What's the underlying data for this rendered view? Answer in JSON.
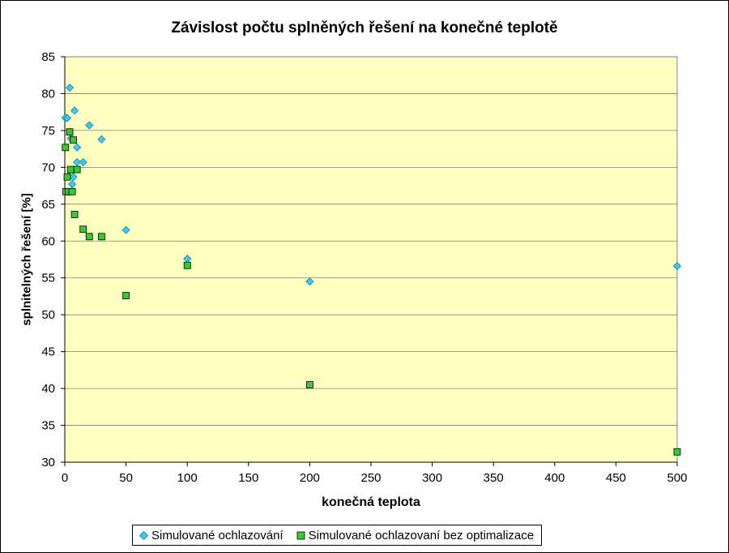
{
  "chart_data": {
    "type": "scatter",
    "title": "Závislost počtu splněných řešení na konečné teplotě",
    "xlabel": "konečná teplota",
    "ylabel": "splnitelných řešení [%]",
    "xlim": [
      0,
      500
    ],
    "ylim": [
      30,
      85
    ],
    "xticks": [
      0,
      50,
      100,
      150,
      200,
      250,
      300,
      350,
      400,
      450,
      500
    ],
    "yticks": [
      30,
      35,
      40,
      45,
      50,
      55,
      60,
      65,
      70,
      75,
      80,
      85
    ],
    "grid": "horizontal",
    "legend_position": "bottom",
    "plot_background": "#FFFFC0",
    "series": [
      {
        "name": "Simulované ochlazování",
        "marker": "diamond",
        "color": "#33CCFF",
        "x": [
          0.5,
          2,
          4,
          5,
          6,
          7,
          8,
          10,
          10,
          15,
          20,
          30,
          50,
          100,
          200,
          500
        ],
        "y": [
          76.7,
          76.7,
          80.8,
          73.9,
          67.7,
          68.7,
          77.7,
          72.7,
          70.7,
          70.7,
          75.7,
          73.8,
          61.5,
          57.6,
          54.5,
          56.6
        ]
      },
      {
        "name": "Simulované ochlazovaní bez optimalizace",
        "marker": "square",
        "color": "#33CC33",
        "x": [
          0.5,
          1,
          2,
          3,
          4,
          5,
          6,
          7,
          8,
          10,
          15,
          20,
          30,
          50,
          100,
          200,
          500
        ],
        "y": [
          72.7,
          66.7,
          68.7,
          66.7,
          74.8,
          69.7,
          66.7,
          73.7,
          63.6,
          69.7,
          61.6,
          60.6,
          60.6,
          52.6,
          56.7,
          40.5,
          31.4
        ]
      }
    ]
  }
}
